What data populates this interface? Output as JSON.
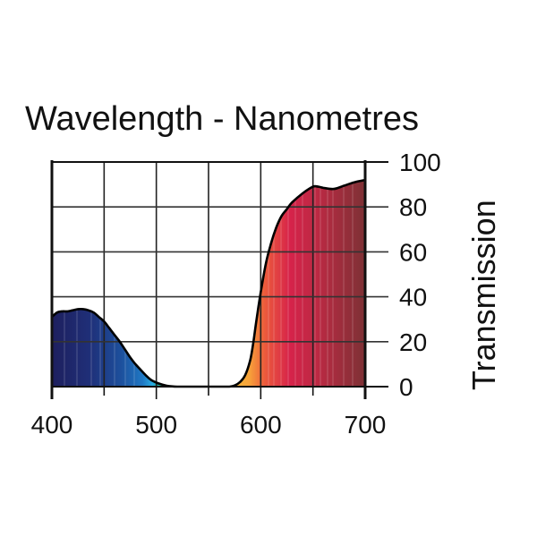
{
  "chart_data": {
    "type": "area",
    "title": "Wavelength - Nanometres",
    "xlabel": "Wavelength - Nanometres",
    "ylabel": "Transmission",
    "xlim": [
      400,
      700
    ],
    "ylim": [
      0,
      100
    ],
    "x_ticks": [
      400,
      500,
      600,
      700
    ],
    "x_tick_labels": [
      "400",
      "500",
      "600",
      "700"
    ],
    "x_minor_ticks": [
      450,
      550,
      650
    ],
    "y_ticks": [
      0,
      20,
      40,
      60,
      80,
      100
    ],
    "y_tick_labels": [
      "0",
      "20",
      "40",
      "60",
      "80",
      "100"
    ],
    "y_axis_side": "right",
    "grid": true,
    "series": [
      {
        "name": "Transmission",
        "x": [
          400,
          405,
          410,
          415,
          420,
          425,
          430,
          435,
          440,
          445,
          450,
          455,
          460,
          465,
          470,
          475,
          480,
          485,
          490,
          495,
          500,
          505,
          510,
          515,
          520,
          530,
          540,
          550,
          560,
          570,
          575,
          580,
          585,
          590,
          593,
          596,
          600,
          605,
          610,
          615,
          620,
          625,
          630,
          640,
          650,
          655,
          660,
          670,
          680,
          690,
          700
        ],
        "y": [
          31,
          33,
          33.5,
          33.5,
          34,
          34.5,
          34.5,
          34,
          33,
          31,
          29,
          26,
          23,
          20,
          16.5,
          13,
          10,
          7.5,
          5,
          3,
          1.8,
          1,
          0.4,
          0.1,
          0,
          0,
          0,
          0,
          0,
          0,
          0.5,
          2,
          5,
          12,
          20,
          30,
          42,
          55,
          64,
          71,
          76,
          79,
          82,
          86,
          89,
          89,
          88.5,
          88,
          89.5,
          91,
          92
        ]
      }
    ]
  }
}
